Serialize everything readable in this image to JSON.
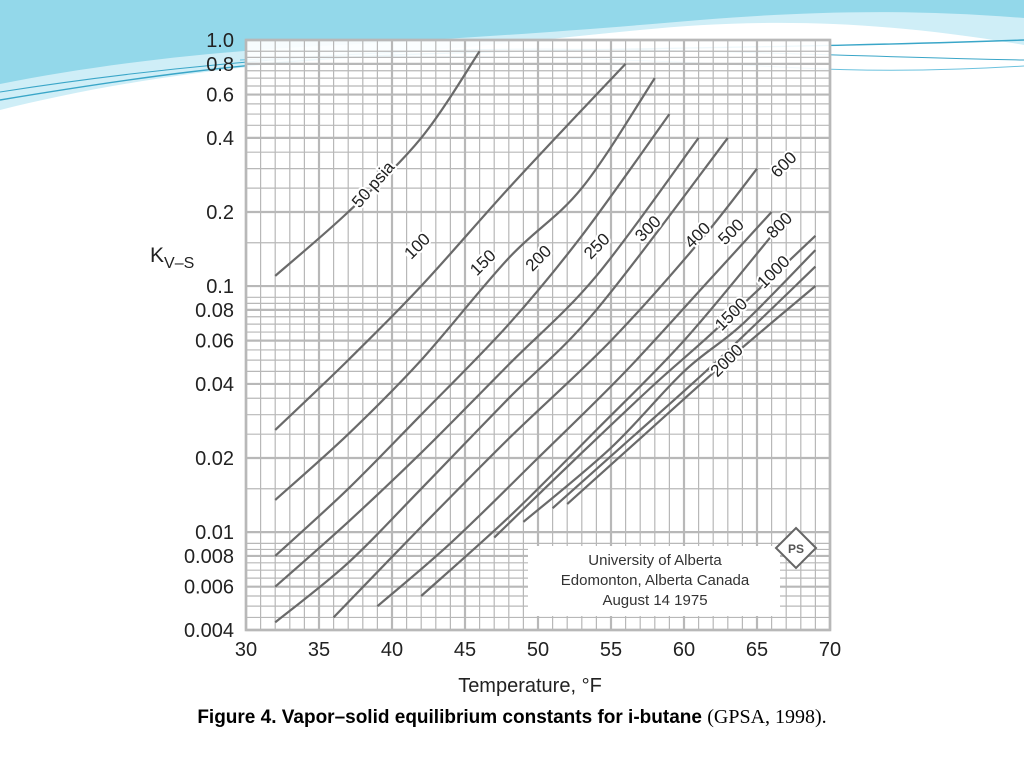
{
  "slide": {
    "caption_main": "Figure 4. Vapor–solid equilibrium constants for i-butane",
    "caption_source": "(GPSA, 1998)."
  },
  "colors": {
    "deco_light": "#cfeef7",
    "deco_mid": "#7fd0e6",
    "deco_line": "#3aa6c8",
    "grid": "#b8b8b8",
    "curve": "#6a6a6a",
    "text": "#222222"
  },
  "chart_data": {
    "type": "line",
    "title": "",
    "xlabel": "Temperature, °F",
    "ylabel": "K",
    "ylabel_sub": "V–S",
    "xlim": [
      30,
      70
    ],
    "ylim": [
      0.004,
      1.0
    ],
    "y_scale": "log",
    "grid": true,
    "x_ticks": [
      30,
      35,
      40,
      45,
      50,
      55,
      60,
      65,
      70
    ],
    "y_ticks": [
      {
        "value": 1.0,
        "label": "1.0"
      },
      {
        "value": 0.8,
        "label": "0.8"
      },
      {
        "value": 0.6,
        "label": "0.6"
      },
      {
        "value": 0.4,
        "label": "0.4"
      },
      {
        "value": 0.2,
        "label": "0.2"
      },
      {
        "value": 0.1,
        "label": "0.1"
      },
      {
        "value": 0.08,
        "label": "0.08"
      },
      {
        "value": 0.06,
        "label": "0.06"
      },
      {
        "value": 0.04,
        "label": "0.04"
      },
      {
        "value": 0.02,
        "label": "0.02"
      },
      {
        "value": 0.01,
        "label": "0.01"
      },
      {
        "value": 0.008,
        "label": "0.008"
      },
      {
        "value": 0.006,
        "label": "0.006"
      },
      {
        "value": 0.004,
        "label": "0.004"
      }
    ],
    "series": [
      {
        "name": "50 psia",
        "points": [
          [
            32,
            0.11
          ],
          [
            37,
            0.2
          ],
          [
            42,
            0.4
          ],
          [
            46,
            0.9
          ]
        ]
      },
      {
        "name": "100",
        "points": [
          [
            32,
            0.026
          ],
          [
            37,
            0.05
          ],
          [
            42,
            0.1
          ],
          [
            48,
            0.25
          ],
          [
            54,
            0.6
          ],
          [
            56,
            0.8
          ]
        ]
      },
      {
        "name": "150",
        "points": [
          [
            32,
            0.0135
          ],
          [
            37,
            0.025
          ],
          [
            42,
            0.05
          ],
          [
            48,
            0.13
          ],
          [
            53,
            0.25
          ],
          [
            58,
            0.7
          ]
        ]
      },
      {
        "name": "200",
        "points": [
          [
            32,
            0.008
          ],
          [
            37,
            0.015
          ],
          [
            42,
            0.03
          ],
          [
            48,
            0.07
          ],
          [
            53,
            0.16
          ],
          [
            59,
            0.5
          ]
        ]
      },
      {
        "name": "250",
        "points": [
          [
            32,
            0.006
          ],
          [
            37,
            0.011
          ],
          [
            42,
            0.021
          ],
          [
            48,
            0.048
          ],
          [
            54,
            0.11
          ],
          [
            61,
            0.4
          ]
        ]
      },
      {
        "name": "300",
        "points": [
          [
            32,
            0.0043
          ],
          [
            37,
            0.0075
          ],
          [
            42,
            0.015
          ],
          [
            48,
            0.035
          ],
          [
            54,
            0.08
          ],
          [
            63,
            0.4
          ]
        ]
      },
      {
        "name": "400",
        "points": [
          [
            36,
            0.0045
          ],
          [
            42,
            0.0105
          ],
          [
            48,
            0.024
          ],
          [
            55,
            0.06
          ],
          [
            61,
            0.15
          ],
          [
            65,
            0.3
          ]
        ]
      },
      {
        "name": "500",
        "points": [
          [
            39,
            0.005
          ],
          [
            44,
            0.009
          ],
          [
            50,
            0.02
          ],
          [
            56,
            0.045
          ],
          [
            62,
            0.11
          ],
          [
            66,
            0.2
          ]
        ]
      },
      {
        "name": "600",
        "points": [
          [
            42,
            0.0055
          ],
          [
            48,
            0.0115
          ],
          [
            54,
            0.026
          ],
          [
            60,
            0.06
          ],
          [
            66,
            0.16
          ]
        ]
      },
      {
        "name": "800",
        "points": [
          [
            47,
            0.0095
          ],
          [
            53,
            0.021
          ],
          [
            58,
            0.04
          ],
          [
            62,
            0.065
          ],
          [
            69,
            0.16
          ]
        ]
      },
      {
        "name": "1000",
        "points": [
          [
            49,
            0.011
          ],
          [
            55,
            0.022
          ],
          [
            60,
            0.045
          ],
          [
            64,
            0.07
          ],
          [
            69,
            0.14
          ]
        ]
      },
      {
        "name": "1500",
        "points": [
          [
            51,
            0.0125
          ],
          [
            56,
            0.023
          ],
          [
            62,
            0.048
          ],
          [
            69,
            0.12
          ]
        ]
      },
      {
        "name": "2000",
        "points": [
          [
            52,
            0.013
          ],
          [
            57,
            0.024
          ],
          [
            63,
            0.05
          ],
          [
            69,
            0.1
          ]
        ]
      }
    ],
    "curve_labels": [
      {
        "text": "50 psia",
        "x": 39,
        "y": 0.25,
        "angle": -49
      },
      {
        "text": "100",
        "x": 42,
        "y": 0.14,
        "angle": -45
      },
      {
        "text": "150",
        "x": 46.5,
        "y": 0.12,
        "angle": -45
      },
      {
        "text": "200",
        "x": 50.3,
        "y": 0.125,
        "angle": -45
      },
      {
        "text": "250",
        "x": 54.3,
        "y": 0.14,
        "angle": -45
      },
      {
        "text": "300",
        "x": 57.8,
        "y": 0.165,
        "angle": -45
      },
      {
        "text": "400",
        "x": 61.2,
        "y": 0.155,
        "angle": -45
      },
      {
        "text": "500",
        "x": 63.5,
        "y": 0.16,
        "angle": -45
      },
      {
        "text": "600",
        "x": 67.1,
        "y": 0.3,
        "angle": -45
      },
      {
        "text": "800",
        "x": 66.8,
        "y": 0.17,
        "angle": -45
      },
      {
        "text": "1000",
        "x": 66.4,
        "y": 0.11,
        "angle": -45
      },
      {
        "text": "1500",
        "x": 63.5,
        "y": 0.074,
        "angle": -45
      },
      {
        "text": "2000",
        "x": 63.2,
        "y": 0.048,
        "angle": -45
      }
    ],
    "annotation": {
      "lines": [
        "University of Alberta",
        "Edomonton, Alberta Canada",
        "August 14 1975"
      ],
      "logo_text": "PS"
    }
  }
}
